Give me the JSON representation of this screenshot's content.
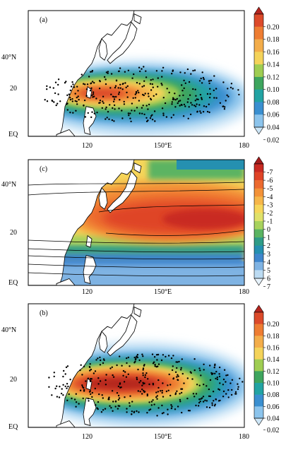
{
  "panels": [
    {
      "id": "a",
      "label": "(a)",
      "lat_labels": [
        "40°N",
        "20",
        "EQ"
      ],
      "lon_labels": [
        "120",
        "150°E",
        "180"
      ],
      "colorbar": {
        "ticks": [
          "0.20",
          "0.18",
          "0.16",
          "0.14",
          "0.12",
          "0.10",
          "0.08",
          "0.06",
          "0.04",
          "0.02"
        ],
        "colors": [
          "#b5251f",
          "#dc4a2a",
          "#ee7d32",
          "#f3ad4a",
          "#f4d35a",
          "#9fcd52",
          "#3ea55e",
          "#22a3a3",
          "#3a8fd0",
          "#8cc4ec",
          "#cde6f7"
        ]
      }
    },
    {
      "id": "c",
      "label": "(c)",
      "lat_labels": [
        "40°N",
        "20",
        "EQ"
      ],
      "lon_labels": [
        "120",
        "150°E",
        "180"
      ],
      "colorbar": {
        "ticks": [
          "-7",
          "-6",
          "-5",
          "-4",
          "-3",
          "-2",
          "-1",
          "0",
          "1",
          "2",
          "3",
          "4",
          "5",
          "6",
          "7"
        ],
        "colors": [
          "#a41c1c",
          "#c92a22",
          "#df4427",
          "#ec6a2f",
          "#f39238",
          "#f6b649",
          "#f6d65a",
          "#dfe16a",
          "#a8d25d",
          "#5bb462",
          "#2f9c87",
          "#2590b0",
          "#3f86cd",
          "#7fb3e3",
          "#bcdbf2",
          "#e6f2fb"
        ]
      }
    },
    {
      "id": "b",
      "label": "(b)",
      "lat_labels": [
        "40°N",
        "20",
        "EQ"
      ],
      "lon_labels": [
        "120",
        "150°E",
        "180"
      ],
      "colorbar": {
        "ticks": [
          "0.20",
          "0.18",
          "0.16",
          "0.14",
          "0.12",
          "0.10",
          "0.08",
          "0.06",
          "0.04",
          "0.02"
        ],
        "colors": [
          "#b5251f",
          "#dc4a2a",
          "#ee7d32",
          "#f3ad4a",
          "#f4d35a",
          "#9fcd52",
          "#3ea55e",
          "#22a3a3",
          "#3a8fd0",
          "#8cc4ec",
          "#cde6f7"
        ]
      }
    }
  ]
}
